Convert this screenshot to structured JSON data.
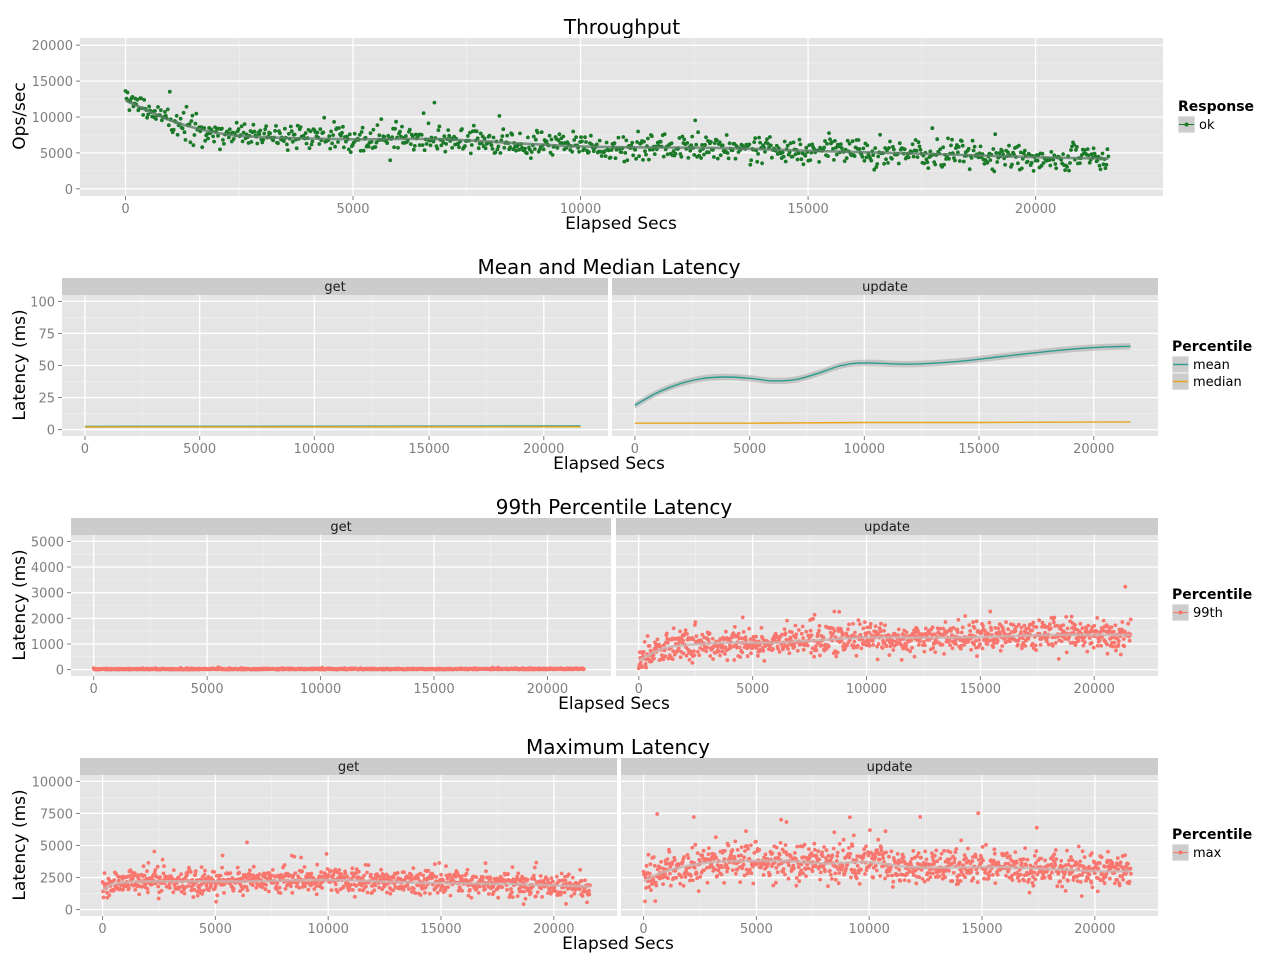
{
  "chart_data": [
    {
      "type": "scatter",
      "title": "Throughput",
      "xlabel": "Elapsed Secs",
      "ylabel": "Ops/sec",
      "xlim": [
        -1000,
        22800
      ],
      "ylim": [
        -1000,
        21000
      ],
      "xticks": [
        0,
        5000,
        10000,
        15000,
        20000
      ],
      "yticks": [
        0,
        5000,
        10000,
        15000,
        20000
      ],
      "x_range": [
        0,
        21600
      ],
      "grid": true,
      "legend": {
        "title": "Response",
        "position": "right",
        "entries": [
          {
            "label": "ok",
            "color": "#1a7a28",
            "kind": "point-line"
          }
        ]
      },
      "panels": [
        {
          "strip": "",
          "series": [
            {
              "name": "ok",
              "kind": "points",
              "color": "#1a7a28",
              "count": 1000,
              "x_range": [
                0,
                21600
              ],
              "trend_x": [
                0,
                1000,
                2000,
                3000,
                5000,
                7000,
                10000,
                13000,
                15000,
                18000,
                20000,
                21600
              ],
              "trend_y": [
                12300,
                9500,
                7800,
                7200,
                6900,
                6900,
                5900,
                5700,
                5300,
                4800,
                4400,
                4200
              ],
              "spread": 1400
            },
            {
              "name": "ok smooth",
              "kind": "smooth",
              "color": "#5e7f66",
              "x": [
                0,
                1000,
                2000,
                3000,
                5000,
                7000,
                10000,
                13000,
                15000,
                18000,
                20000,
                21600
              ],
              "y": [
                12300,
                9500,
                7800,
                7200,
                6900,
                6900,
                5900,
                5700,
                5300,
                4800,
                4400,
                4200
              ]
            }
          ]
        }
      ]
    },
    {
      "type": "line",
      "title": "Mean and Median Latency",
      "xlabel": "Elapsed Secs",
      "ylabel": "Latency (ms)",
      "xlim": [
        -1000,
        22800
      ],
      "ylim": [
        -5,
        105
      ],
      "xticks": [
        0,
        5000,
        10000,
        15000,
        20000
      ],
      "yticks": [
        0,
        25,
        50,
        75,
        100
      ],
      "grid": true,
      "legend": {
        "title": "Percentile",
        "position": "right",
        "entries": [
          {
            "label": "mean",
            "color": "#2a9d8f",
            "kind": "line"
          },
          {
            "label": "median",
            "color": "#e9a51a",
            "kind": "line"
          }
        ]
      },
      "panels": [
        {
          "strip": "get",
          "series": [
            {
              "name": "mean",
              "kind": "line",
              "color": "#2a9d8f",
              "x": [
                0,
                21600
              ],
              "y": [
                2.5,
                2.8
              ]
            },
            {
              "name": "median",
              "kind": "line",
              "color": "#e9a51a",
              "x": [
                0,
                21600
              ],
              "y": [
                2.0,
                2.2
              ]
            }
          ]
        },
        {
          "strip": "update",
          "series": [
            {
              "name": "mean",
              "kind": "smooth",
              "color": "#2a9d8f",
              "x": [
                0,
                1000,
                2000,
                3000,
                4000,
                5000,
                6000,
                7000,
                8000,
                9000,
                10000,
                12000,
                14000,
                16000,
                18000,
                20000,
                21600
              ],
              "y": [
                19,
                29,
                36,
                40,
                41,
                40,
                38,
                39,
                44,
                50,
                52,
                51,
                53,
                57,
                61,
                64,
                65
              ],
              "band": 2.5
            },
            {
              "name": "median",
              "kind": "line",
              "color": "#e9a51a",
              "x": [
                0,
                5000,
                10000,
                15000,
                21600
              ],
              "y": [
                5,
                5,
                5.5,
                5.5,
                6
              ]
            }
          ]
        }
      ]
    },
    {
      "type": "scatter",
      "title": "99th Percentile Latency",
      "xlabel": "Elapsed Secs",
      "ylabel": "Latency (ms)",
      "xlim": [
        -1000,
        22800
      ],
      "ylim": [
        -250,
        5250
      ],
      "xticks": [
        0,
        5000,
        10000,
        15000,
        20000
      ],
      "yticks": [
        0,
        1000,
        2000,
        3000,
        4000,
        5000
      ],
      "grid": true,
      "legend": {
        "title": "Percentile",
        "position": "right",
        "entries": [
          {
            "label": "99th",
            "color": "#f8766d",
            "kind": "point-line"
          }
        ]
      },
      "panels": [
        {
          "strip": "get",
          "series": [
            {
              "name": "99th",
              "kind": "points",
              "color": "#f8766d",
              "count": 1000,
              "x_range": [
                0,
                21600
              ],
              "trend_x": [
                0,
                21600
              ],
              "trend_y": [
                15,
                25
              ],
              "spread": 20
            }
          ]
        },
        {
          "strip": "update",
          "series": [
            {
              "name": "99th",
              "kind": "points",
              "color": "#f8766d",
              "count": 1000,
              "x_range": [
                0,
                21600
              ],
              "trend_x": [
                0,
                1000,
                2000,
                4000,
                6000,
                8000,
                10000,
                14000,
                18000,
                21600
              ],
              "trend_y": [
                350,
                800,
                950,
                1050,
                1050,
                1150,
                1250,
                1250,
                1350,
                1350
              ],
              "spread": 430
            },
            {
              "name": "99th smooth",
              "kind": "smooth",
              "color": "#c9b4b2",
              "x": [
                0,
                1000,
                2000,
                4000,
                6000,
                8000,
                10000,
                14000,
                18000,
                21600
              ],
              "y": [
                350,
                800,
                950,
                1050,
                1050,
                1150,
                1250,
                1250,
                1350,
                1350
              ]
            }
          ]
        }
      ]
    },
    {
      "type": "scatter",
      "title": "Maximum Latency",
      "xlabel": "Elapsed Secs",
      "ylabel": "Latency (ms)",
      "xlim": [
        -1000,
        22800
      ],
      "ylim": [
        -500,
        10500
      ],
      "xticks": [
        0,
        5000,
        10000,
        15000,
        20000
      ],
      "yticks": [
        0,
        2500,
        5000,
        7500,
        10000
      ],
      "grid": true,
      "legend": {
        "title": "Percentile",
        "position": "right",
        "entries": [
          {
            "label": "max",
            "color": "#f8766d",
            "kind": "point-line"
          }
        ]
      },
      "panels": [
        {
          "strip": "get",
          "series": [
            {
              "name": "max",
              "kind": "points",
              "color": "#f8766d",
              "count": 1000,
              "x_range": [
                0,
                21600
              ],
              "trend_x": [
                0,
                500,
                2000,
                6000,
                10000,
                14000,
                18000,
                21600
              ],
              "trend_y": [
                1500,
                2000,
                2200,
                2200,
                2300,
                2100,
                2000,
                1800
              ],
              "spread": 750
            },
            {
              "name": "max smooth",
              "kind": "smooth",
              "color": "#c9b4b2",
              "x": [
                0,
                500,
                2000,
                6000,
                10000,
                14000,
                18000,
                21600
              ],
              "y": [
                1500,
                2000,
                2200,
                2200,
                2300,
                2100,
                2000,
                1800
              ]
            }
          ]
        },
        {
          "strip": "update",
          "series": [
            {
              "name": "max",
              "kind": "points",
              "color": "#f8766d",
              "count": 1000,
              "x_range": [
                0,
                21600
              ],
              "trend_x": [
                0,
                1000,
                3000,
                6000,
                8000,
                10000,
                12000,
                16000,
                20000,
                21600
              ],
              "trend_y": [
                2200,
                3000,
                3700,
                3800,
                3600,
                3700,
                3300,
                3300,
                3000,
                3000
              ],
              "spread": 1100
            },
            {
              "name": "max smooth",
              "kind": "smooth",
              "color": "#c9b4b2",
              "x": [
                0,
                1000,
                3000,
                6000,
                8000,
                10000,
                12000,
                16000,
                20000,
                21600
              ],
              "y": [
                2200,
                3000,
                3700,
                3800,
                3600,
                3700,
                3300,
                3300,
                3000,
                3000
              ]
            }
          ]
        }
      ]
    }
  ]
}
